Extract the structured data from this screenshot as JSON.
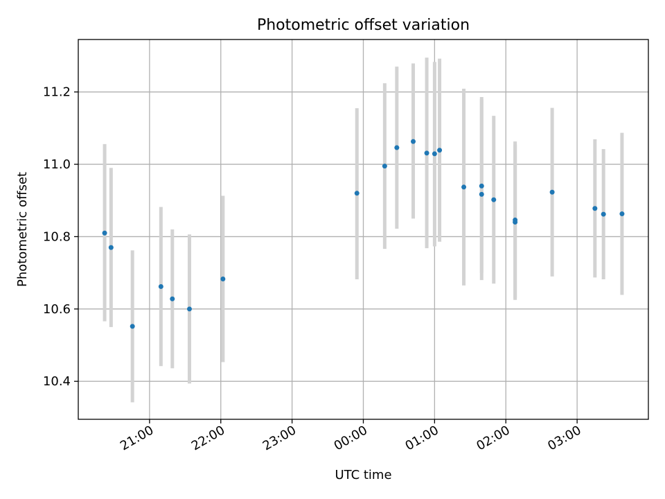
{
  "chart_data": {
    "type": "scatter",
    "title": "Photometric offset variation",
    "xlabel": "UTC time",
    "ylabel": "Photometric offset",
    "x_unit": "UTC time (hours; values past 24 are after midnight)",
    "xlim": [
      20.0,
      28.0
    ],
    "ylim": [
      10.295,
      11.345
    ],
    "xticks": [
      {
        "value": 21,
        "label": "21:00"
      },
      {
        "value": 22,
        "label": "22:00"
      },
      {
        "value": 23,
        "label": "23:00"
      },
      {
        "value": 24,
        "label": "00:00"
      },
      {
        "value": 25,
        "label": "01:00"
      },
      {
        "value": 26,
        "label": "02:00"
      },
      {
        "value": 27,
        "label": "03:00"
      }
    ],
    "yticks": [
      {
        "value": 10.4,
        "label": "10.4"
      },
      {
        "value": 10.6,
        "label": "10.6"
      },
      {
        "value": 10.8,
        "label": "10.8"
      },
      {
        "value": 11.0,
        "label": "11.0"
      },
      {
        "value": 11.2,
        "label": "11.2"
      }
    ],
    "grid": true,
    "colors": {
      "point": "#1f77b4",
      "errorbar": "#d3d3d3",
      "grid": "#b0b0b0"
    },
    "points": [
      {
        "x": 20.37,
        "y": 10.81,
        "ylow": 10.566,
        "yhigh": 11.056
      },
      {
        "x": 20.46,
        "y": 10.77,
        "ylow": 10.55,
        "yhigh": 10.99
      },
      {
        "x": 20.76,
        "y": 10.552,
        "ylow": 10.342,
        "yhigh": 10.762
      },
      {
        "x": 21.16,
        "y": 10.662,
        "ylow": 10.442,
        "yhigh": 10.882
      },
      {
        "x": 21.32,
        "y": 10.628,
        "ylow": 10.436,
        "yhigh": 10.82
      },
      {
        "x": 21.56,
        "y": 10.6,
        "ylow": 10.394,
        "yhigh": 10.806
      },
      {
        "x": 22.03,
        "y": 10.683,
        "ylow": 10.453,
        "yhigh": 10.913
      },
      {
        "x": 23.91,
        "y": 10.92,
        "ylow": 10.682,
        "yhigh": 11.155
      },
      {
        "x": 24.3,
        "y": 10.995,
        "ylow": 10.766,
        "yhigh": 11.224
      },
      {
        "x": 24.47,
        "y": 11.046,
        "ylow": 10.822,
        "yhigh": 11.27
      },
      {
        "x": 24.7,
        "y": 11.063,
        "ylow": 10.85,
        "yhigh": 11.279
      },
      {
        "x": 24.89,
        "y": 11.031,
        "ylow": 10.768,
        "yhigh": 11.295
      },
      {
        "x": 25.0,
        "y": 11.029,
        "ylow": 10.773,
        "yhigh": 11.283
      },
      {
        "x": 25.07,
        "y": 11.039,
        "ylow": 10.786,
        "yhigh": 11.292
      },
      {
        "x": 25.41,
        "y": 10.937,
        "ylow": 10.665,
        "yhigh": 11.209
      },
      {
        "x": 25.66,
        "y": 10.917,
        "ylow": 10.68,
        "yhigh": 11.186
      },
      {
        "x": 25.66,
        "y": 10.94,
        "ylow": 10.7,
        "yhigh": 11.18
      },
      {
        "x": 25.83,
        "y": 10.902,
        "ylow": 10.67,
        "yhigh": 11.134
      },
      {
        "x": 26.13,
        "y": 10.84,
        "ylow": 10.625,
        "yhigh": 11.055
      },
      {
        "x": 26.13,
        "y": 10.846,
        "ylow": 10.631,
        "yhigh": 11.063
      },
      {
        "x": 26.65,
        "y": 10.923,
        "ylow": 10.69,
        "yhigh": 11.156
      },
      {
        "x": 27.25,
        "y": 10.878,
        "ylow": 10.687,
        "yhigh": 11.069
      },
      {
        "x": 27.37,
        "y": 10.862,
        "ylow": 10.682,
        "yhigh": 11.042
      },
      {
        "x": 27.63,
        "y": 10.863,
        "ylow": 10.639,
        "yhigh": 11.087
      }
    ]
  }
}
